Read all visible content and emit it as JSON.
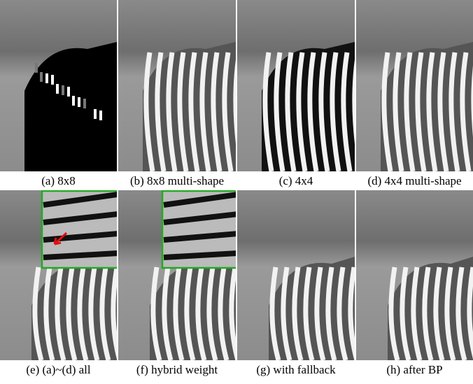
{
  "panels": [
    {
      "caption": "(a) 8x8"
    },
    {
      "caption": "(b) 8x8 multi-shape"
    },
    {
      "caption": "(c) 4x4"
    },
    {
      "caption": "(d) 4x4 multi-shape"
    },
    {
      "caption": "(e) (a)~(d) all"
    },
    {
      "caption": "(f) hybrid weight"
    },
    {
      "caption": "(g) with fallback"
    },
    {
      "caption": "(h) after BP"
    }
  ]
}
